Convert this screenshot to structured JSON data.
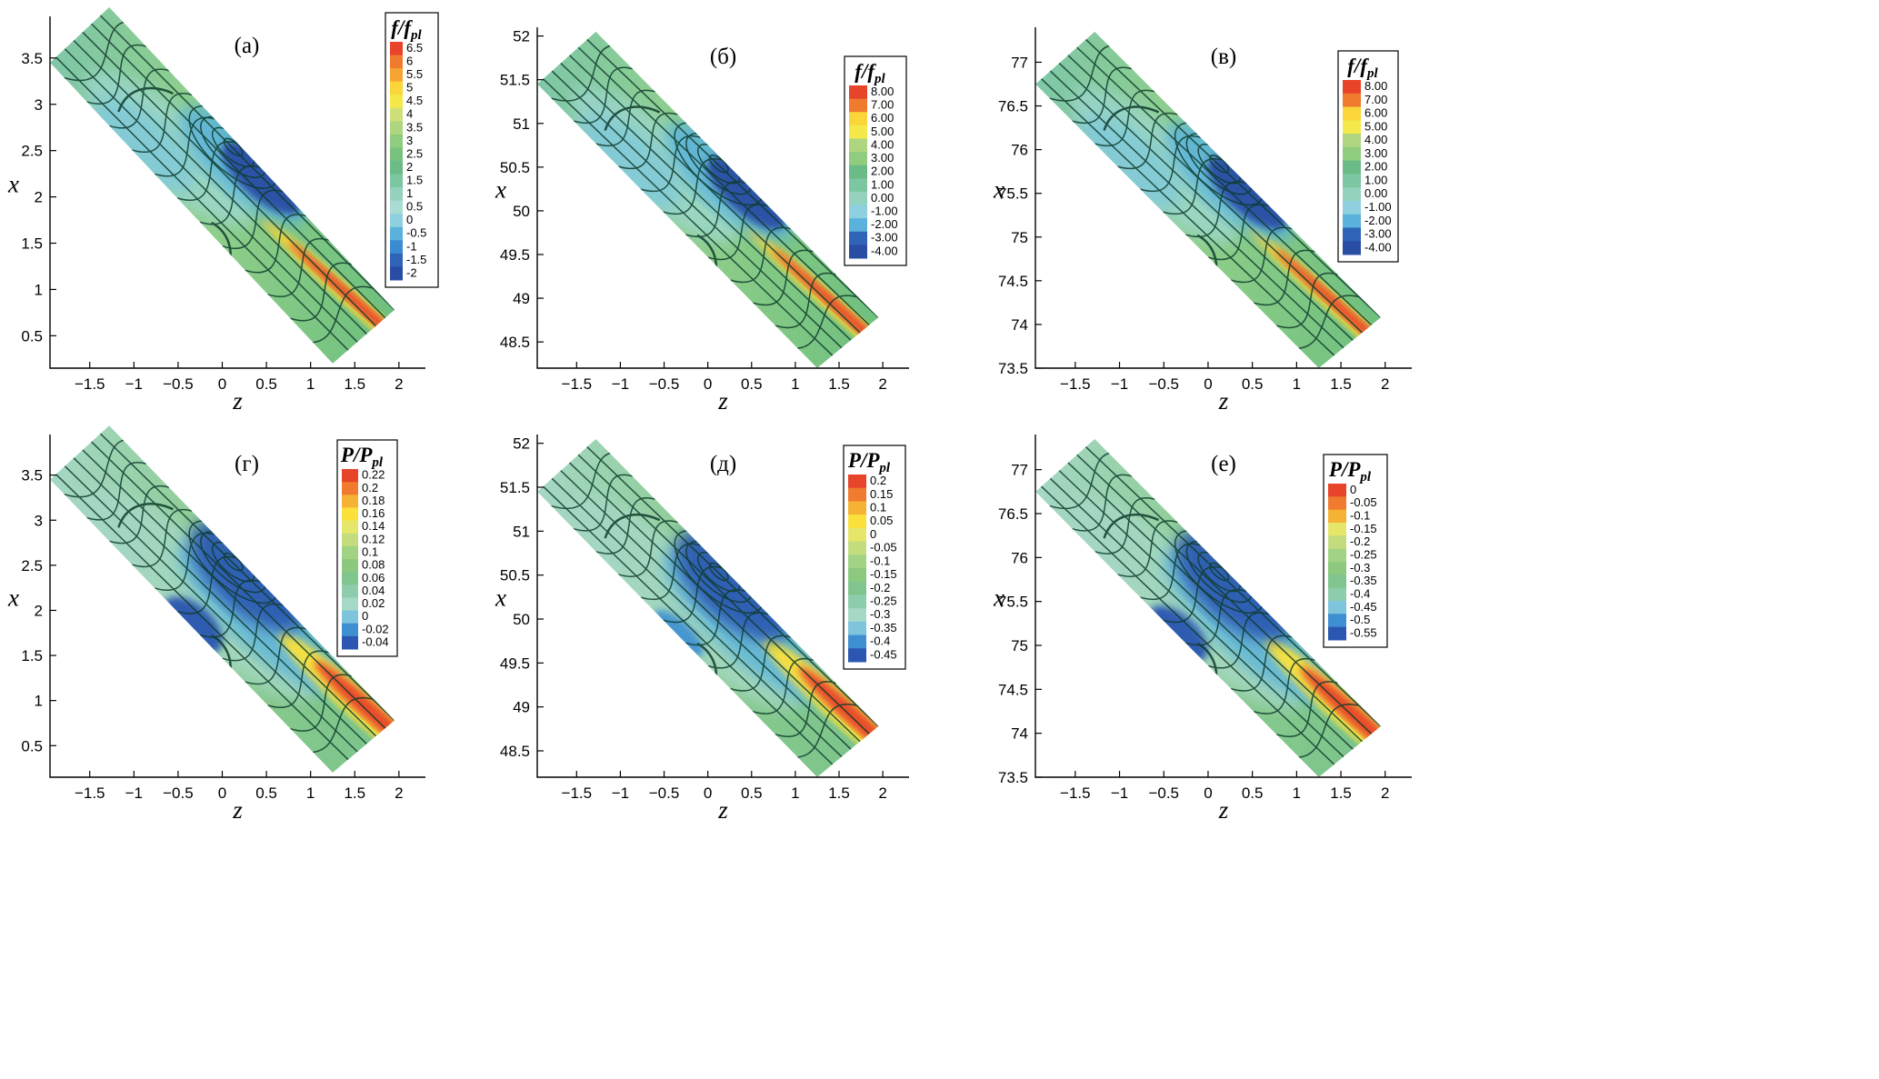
{
  "figure": {
    "panels": [
      {
        "label": "(а)",
        "legend": {
          "title_main": "f/f",
          "title_sub": "pl",
          "labels": [
            "6.5",
            "6",
            "5.5",
            "5",
            "4.5",
            "4",
            "3.5",
            "3",
            "2.5",
            "2",
            "1.5",
            "1",
            "0.5",
            "0",
            "-0.5",
            "-1",
            "-1.5",
            "-2"
          ]
        }
      },
      {
        "label": "(б)",
        "legend": {
          "title_main": "f/f",
          "title_sub": "pl",
          "labels": [
            "8.00",
            "7.00",
            "6.00",
            "5.00",
            "4.00",
            "3.00",
            "2.00",
            "1.00",
            "0.00",
            "-1.00",
            "-2.00",
            "-3.00",
            "-4.00"
          ]
        }
      },
      {
        "label": "(в)",
        "legend": {
          "title_main": "f/f",
          "title_sub": "pl",
          "labels": [
            "8.00",
            "7.00",
            "6.00",
            "5.00",
            "4.00",
            "3.00",
            "2.00",
            "1.00",
            "0.00",
            "-1.00",
            "-2.00",
            "-3.00",
            "-4.00"
          ]
        }
      },
      {
        "label": "(г)",
        "legend": {
          "title_main": "P/P",
          "title_sub": "pl",
          "labels": [
            "0.22",
            "0.2",
            "0.18",
            "0.16",
            "0.14",
            "0.12",
            "0.1",
            "0.08",
            "0.06",
            "0.04",
            "0.02",
            "0",
            "-0.02",
            "-0.04"
          ]
        }
      },
      {
        "label": "(д)",
        "legend": {
          "title_main": "P/P",
          "title_sub": "pl",
          "labels": [
            "0.2",
            "0.15",
            "0.1",
            "0.05",
            "0",
            "-0.05",
            "-0.1",
            "-0.15",
            "-0.2",
            "-0.25",
            "-0.3",
            "-0.35",
            "-0.4",
            "-0.45"
          ]
        }
      },
      {
        "label": "(е)",
        "legend": {
          "title_main": "P/P",
          "title_sub": "pl",
          "labels": [
            "0",
            "-0.05",
            "-0.1",
            "-0.15",
            "-0.2",
            "-0.25",
            "-0.3",
            "-0.35",
            "-0.4",
            "-0.45",
            "-0.5",
            "-0.55"
          ]
        }
      }
    ]
  },
  "chart_data": [
    {
      "type": "heatmap",
      "title": "(а)",
      "xlabel": "z",
      "ylabel": "x",
      "xlim": [
        -1.95,
        2.3
      ],
      "ylim": [
        0.15,
        3.95
      ],
      "xticks": [
        -1.5,
        -1,
        -0.5,
        0,
        0.5,
        1,
        1.5,
        2
      ],
      "yticks": [
        0.5,
        1,
        1.5,
        2,
        2.5,
        3,
        3.5
      ],
      "xtick_labels": [
        "−1.5",
        "−1",
        "−0.5",
        "0",
        "0.5",
        "1",
        "1.5",
        "2"
      ],
      "ytick_labels": [
        "0.5",
        "1",
        "1.5",
        "2",
        "2.5",
        "3",
        "3.5"
      ],
      "colorbar": "f/f_pl",
      "colorbar_range": [
        -2,
        6.5
      ],
      "kind": "friction"
    },
    {
      "type": "heatmap",
      "title": "(б)",
      "xlabel": "z",
      "ylabel": "x",
      "xlim": [
        -1.95,
        2.3
      ],
      "ylim": [
        48.2,
        52.1
      ],
      "xticks": [
        -1.5,
        -1,
        -0.5,
        0,
        0.5,
        1,
        1.5,
        2
      ],
      "yticks": [
        48.5,
        49,
        49.5,
        50,
        50.5,
        51,
        51.5,
        52
      ],
      "xtick_labels": [
        "−1.5",
        "−1",
        "−0.5",
        "0",
        "0.5",
        "1",
        "1.5",
        "2"
      ],
      "ytick_labels": [
        "48.5",
        "49",
        "49.5",
        "50",
        "50.5",
        "51",
        "51.5",
        "52"
      ],
      "colorbar": "f/f_pl",
      "colorbar_range": [
        -4,
        8
      ],
      "kind": "friction"
    },
    {
      "type": "heatmap",
      "title": "(в)",
      "xlabel": "z",
      "ylabel": "x",
      "xlim": [
        -1.95,
        2.3
      ],
      "ylim": [
        73.5,
        77.4
      ],
      "xticks": [
        -1.5,
        -1,
        -0.5,
        0,
        0.5,
        1,
        1.5,
        2
      ],
      "yticks": [
        73.5,
        74,
        74.5,
        75,
        75.5,
        76,
        76.5,
        77
      ],
      "xtick_labels": [
        "−1.5",
        "−1",
        "−0.5",
        "0",
        "0.5",
        "1",
        "1.5",
        "2"
      ],
      "ytick_labels": [
        "73.5",
        "74",
        "74.5",
        "75",
        "75.5",
        "76",
        "76.5",
        "77"
      ],
      "colorbar": "f/f_pl",
      "colorbar_range": [
        -4,
        8
      ],
      "kind": "friction"
    },
    {
      "type": "heatmap",
      "title": "(г)",
      "xlabel": "z",
      "ylabel": "x",
      "xlim": [
        -1.95,
        2.3
      ],
      "ylim": [
        0.15,
        3.95
      ],
      "xticks": [
        -1.5,
        -1,
        -0.5,
        0,
        0.5,
        1,
        1.5,
        2
      ],
      "yticks": [
        0.5,
        1,
        1.5,
        2,
        2.5,
        3,
        3.5
      ],
      "xtick_labels": [
        "−1.5",
        "−1",
        "−0.5",
        "0",
        "0.5",
        "1",
        "1.5",
        "2"
      ],
      "ytick_labels": [
        "0.5",
        "1",
        "1.5",
        "2",
        "2.5",
        "3",
        "3.5"
      ],
      "colorbar": "P/P_pl",
      "colorbar_range": [
        -0.04,
        0.22
      ],
      "kind": "pressure"
    },
    {
      "type": "heatmap",
      "title": "(д)",
      "xlabel": "z",
      "ylabel": "x",
      "xlim": [
        -1.95,
        2.3
      ],
      "ylim": [
        48.2,
        52.1
      ],
      "xticks": [
        -1.5,
        -1,
        -0.5,
        0,
        0.5,
        1,
        1.5,
        2
      ],
      "yticks": [
        48.5,
        49,
        49.5,
        50,
        50.5,
        51,
        51.5,
        52
      ],
      "xtick_labels": [
        "−1.5",
        "−1",
        "−0.5",
        "0",
        "0.5",
        "1",
        "1.5",
        "2"
      ],
      "ytick_labels": [
        "48.5",
        "49",
        "49.5",
        "50",
        "50.5",
        "51",
        "51.5",
        "52"
      ],
      "colorbar": "P/P_pl",
      "colorbar_range": [
        -0.45,
        0.2
      ],
      "kind": "pressure"
    },
    {
      "type": "heatmap",
      "title": "(е)",
      "xlabel": "z",
      "ylabel": "x",
      "xlim": [
        -1.95,
        2.3
      ],
      "ylim": [
        73.5,
        77.4
      ],
      "xticks": [
        -1.5,
        -1,
        -0.5,
        0,
        0.5,
        1,
        1.5,
        2
      ],
      "yticks": [
        73.5,
        74,
        74.5,
        75,
        75.5,
        76,
        76.5,
        77
      ],
      "xtick_labels": [
        "−1.5",
        "−1",
        "−0.5",
        "0",
        "0.5",
        "1",
        "1.5",
        "2"
      ],
      "ytick_labels": [
        "73.5",
        "74",
        "74.5",
        "75",
        "75.5",
        "76",
        "76.5",
        "77"
      ],
      "colorbar": "P/P_pl",
      "colorbar_range": [
        -0.55,
        0
      ],
      "kind": "pressure"
    }
  ],
  "colors": {
    "friction": [
      "#e8442a",
      "#f07a2e",
      "#f6a534",
      "#fbd63a",
      "#f5e84a",
      "#cfe07a",
      "#aed680",
      "#8fcc7d",
      "#78c17e",
      "#6bbb86",
      "#7cc7a1",
      "#94d2bd",
      "#a9dcd2",
      "#8fd0e0",
      "#5ab2dc",
      "#3b8bd0",
      "#2f63b8",
      "#2a4da4"
    ],
    "pressure": [
      "#e8442a",
      "#f07a2e",
      "#f6b234",
      "#fbe13a",
      "#e6e66a",
      "#c3dc7e",
      "#a2d283",
      "#8cc97f",
      "#80c58e",
      "#8ecdab",
      "#a6d8c6",
      "#7dc4dc",
      "#3e8fd2",
      "#2c57b0"
    ]
  }
}
